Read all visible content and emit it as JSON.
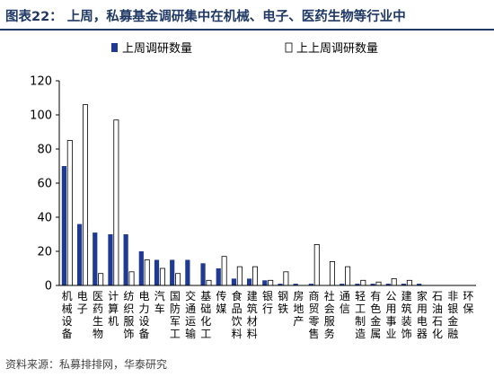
{
  "title": "图表22： 上周，私募基金调研集中在机械、电子、医药生物等行业中",
  "source": "资料来源：私募排排网，华泰研究",
  "colors": {
    "series1": "#1f3a93",
    "series2": "#ffffff",
    "title": "#1f3864"
  },
  "chart_data": {
    "type": "bar",
    "title": "",
    "xlabel": "",
    "ylabel": "",
    "ylim": [
      0,
      120
    ],
    "yticks": [
      0,
      20,
      40,
      60,
      80,
      100,
      120
    ],
    "grid": false,
    "legend": "top-left",
    "categories": [
      "机械设备",
      "电子",
      "医药生物",
      "计算机",
      "纺织服饰",
      "电力设备",
      "汽车",
      "国防军工",
      "交通运输",
      "基础化工",
      "传媒",
      "食品饮料",
      "建筑材料",
      "银行",
      "钢铁",
      "房地产",
      "商贸零售",
      "社会服务",
      "通信",
      "轻工制造",
      "有色金属",
      "公用事业",
      "建筑装饰",
      "家用电器",
      "石油石化",
      "非银金融",
      "环保"
    ],
    "series": [
      {
        "name": "上周调研数量",
        "values": [
          70,
          36,
          31,
          30,
          30,
          20,
          15,
          15,
          15,
          13,
          10,
          4,
          4,
          3,
          1,
          1,
          1,
          0,
          1,
          1,
          1,
          1,
          1,
          1,
          0,
          0,
          0
        ]
      },
      {
        "name": "上上周调研数量",
        "values": [
          85,
          106,
          7,
          97,
          8,
          15,
          10,
          7,
          0,
          3,
          17,
          11,
          11,
          3,
          8,
          0,
          24,
          14,
          11,
          3,
          2,
          4,
          3,
          0,
          0,
          0,
          0
        ]
      }
    ]
  }
}
